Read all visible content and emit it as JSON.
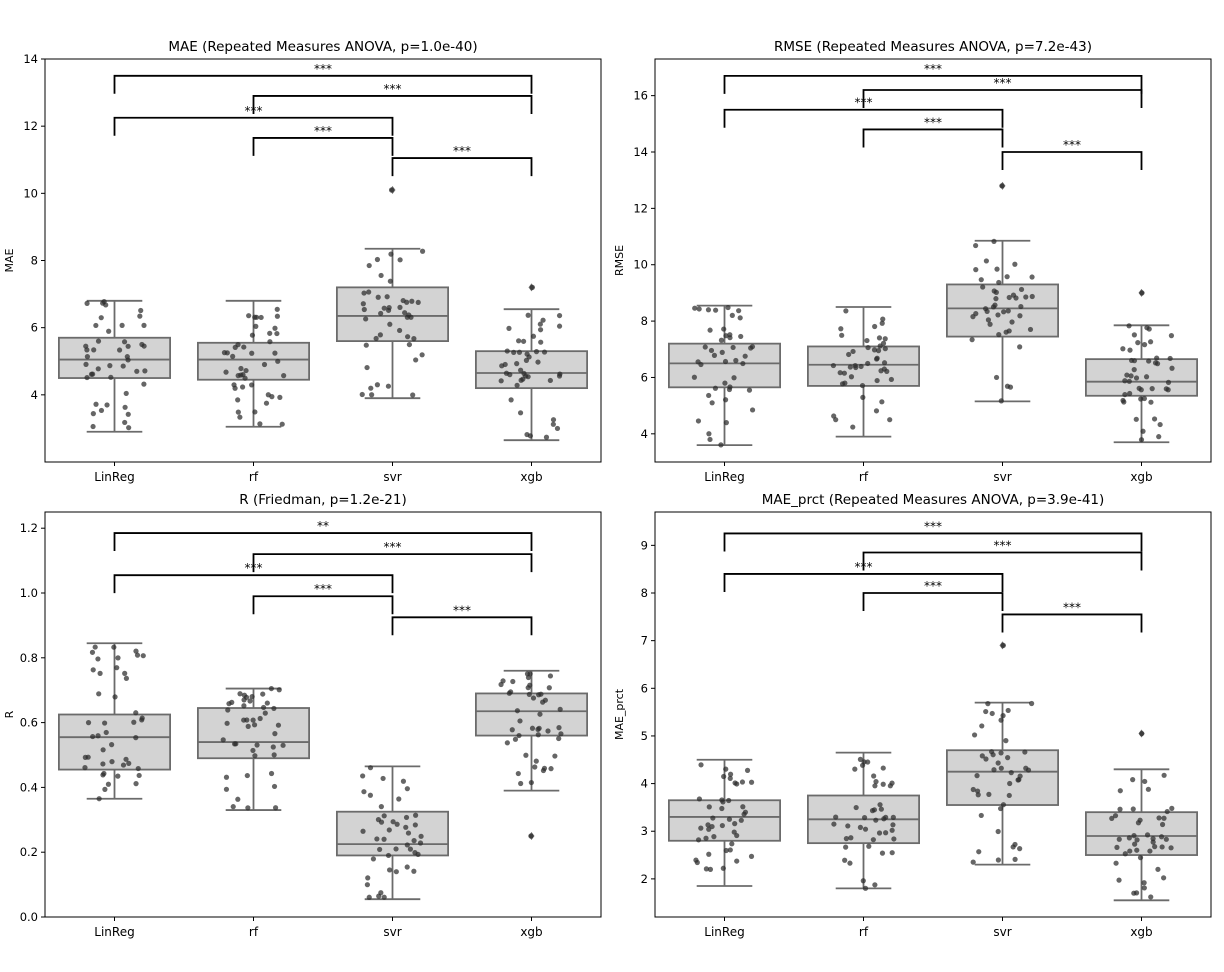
{
  "colors": {
    "box_fill": "#d3d3d3",
    "box_edge": "#6b6b6b",
    "point": "#2b2b2b",
    "bracket": "#000000"
  },
  "chart_data": [
    {
      "type": "box",
      "title": "MAE (Repeated Measures ANOVA, p=1.0e-40)",
      "ylabel": "MAE",
      "categories": [
        "LinReg",
        "rf",
        "svr",
        "xgb"
      ],
      "ylim": [
        2.0,
        14.0
      ],
      "yticks": [
        4,
        6,
        8,
        10,
        12,
        14
      ],
      "ytick_labels": [
        "4",
        "6",
        "8",
        "10",
        "12",
        "14"
      ],
      "boxes": [
        {
          "whislo": 2.9,
          "q1": 4.5,
          "med": 5.05,
          "q3": 5.7,
          "whishi": 6.8,
          "fliers": []
        },
        {
          "whislo": 3.05,
          "q1": 4.45,
          "med": 5.05,
          "q3": 5.55,
          "whishi": 6.8,
          "fliers": []
        },
        {
          "whislo": 3.9,
          "q1": 5.6,
          "med": 6.35,
          "q3": 7.2,
          "whishi": 8.35,
          "fliers": [
            10.1
          ]
        },
        {
          "whislo": 2.65,
          "q1": 4.2,
          "med": 4.65,
          "q3": 5.3,
          "whishi": 6.55,
          "fliers": [
            7.2
          ]
        }
      ],
      "significance": [
        {
          "from": 0,
          "to": 3,
          "y": 13.5,
          "label": "***"
        },
        {
          "from": 1,
          "to": 3,
          "y": 12.9,
          "label": "***"
        },
        {
          "from": 0,
          "to": 2,
          "y": 12.25,
          "label": "***"
        },
        {
          "from": 1,
          "to": 2,
          "y": 11.65,
          "label": "***"
        },
        {
          "from": 2,
          "to": 3,
          "y": 11.05,
          "label": "***"
        }
      ]
    },
    {
      "type": "box",
      "title": "RMSE (Repeated Measures ANOVA, p=7.2e-43)",
      "ylabel": "RMSE",
      "categories": [
        "LinReg",
        "rf",
        "svr",
        "xgb"
      ],
      "ylim": [
        3.0,
        17.3
      ],
      "yticks": [
        4,
        6,
        8,
        10,
        12,
        14,
        16
      ],
      "ytick_labels": [
        "4",
        "6",
        "8",
        "10",
        "12",
        "14",
        "16"
      ],
      "boxes": [
        {
          "whislo": 3.6,
          "q1": 5.65,
          "med": 6.5,
          "q3": 7.2,
          "whishi": 8.55,
          "fliers": []
        },
        {
          "whislo": 3.9,
          "q1": 5.7,
          "med": 6.45,
          "q3": 7.1,
          "whishi": 8.5,
          "fliers": []
        },
        {
          "whislo": 5.15,
          "q1": 7.45,
          "med": 8.45,
          "q3": 9.3,
          "whishi": 10.85,
          "fliers": [
            12.8
          ]
        },
        {
          "whislo": 3.7,
          "q1": 5.35,
          "med": 5.85,
          "q3": 6.65,
          "whishi": 7.85,
          "fliers": [
            9.0
          ]
        }
      ],
      "significance": [
        {
          "from": 0,
          "to": 3,
          "y": 16.7,
          "label": "***"
        },
        {
          "from": 1,
          "to": 3,
          "y": 16.2,
          "label": "***"
        },
        {
          "from": 0,
          "to": 2,
          "y": 15.5,
          "label": "***"
        },
        {
          "from": 1,
          "to": 2,
          "y": 14.8,
          "label": "***"
        },
        {
          "from": 2,
          "to": 3,
          "y": 14.0,
          "label": "***"
        }
      ]
    },
    {
      "type": "box",
      "title": "R (Friedman, p=1.2e-21)",
      "ylabel": "R",
      "categories": [
        "LinReg",
        "rf",
        "svr",
        "xgb"
      ],
      "ylim": [
        0.0,
        1.25
      ],
      "yticks": [
        0.0,
        0.2,
        0.4,
        0.6,
        0.8,
        1.0,
        1.2
      ],
      "ytick_labels": [
        "0.0",
        "0.2",
        "0.4",
        "0.6",
        "0.8",
        "1.0",
        "1.2"
      ],
      "boxes": [
        {
          "whislo": 0.365,
          "q1": 0.455,
          "med": 0.555,
          "q3": 0.625,
          "whishi": 0.845,
          "fliers": []
        },
        {
          "whislo": 0.33,
          "q1": 0.49,
          "med": 0.54,
          "q3": 0.645,
          "whishi": 0.705,
          "fliers": []
        },
        {
          "whislo": 0.055,
          "q1": 0.19,
          "med": 0.225,
          "q3": 0.325,
          "whishi": 0.465,
          "fliers": []
        },
        {
          "whislo": 0.39,
          "q1": 0.56,
          "med": 0.635,
          "q3": 0.69,
          "whishi": 0.76,
          "fliers": [
            0.25
          ]
        }
      ],
      "significance": [
        {
          "from": 0,
          "to": 3,
          "y": 1.185,
          "label": "**"
        },
        {
          "from": 1,
          "to": 3,
          "y": 1.12,
          "label": "***"
        },
        {
          "from": 0,
          "to": 2,
          "y": 1.055,
          "label": "***"
        },
        {
          "from": 1,
          "to": 2,
          "y": 0.99,
          "label": "***"
        },
        {
          "from": 2,
          "to": 3,
          "y": 0.925,
          "label": "***"
        }
      ]
    },
    {
      "type": "box",
      "title": "MAE_prct (Repeated Measures ANOVA, p=3.9e-41)",
      "ylabel": "MAE_prct",
      "categories": [
        "LinReg",
        "rf",
        "svr",
        "xgb"
      ],
      "ylim": [
        1.2,
        9.7
      ],
      "yticks": [
        2,
        3,
        4,
        5,
        6,
        7,
        8,
        9
      ],
      "ytick_labels": [
        "2",
        "3",
        "4",
        "5",
        "6",
        "7",
        "8",
        "9"
      ],
      "boxes": [
        {
          "whislo": 1.85,
          "q1": 2.8,
          "med": 3.3,
          "q3": 3.65,
          "whishi": 4.5,
          "fliers": []
        },
        {
          "whislo": 1.8,
          "q1": 2.75,
          "med": 3.25,
          "q3": 3.75,
          "whishi": 4.65,
          "fliers": []
        },
        {
          "whislo": 2.3,
          "q1": 3.55,
          "med": 4.25,
          "q3": 4.7,
          "whishi": 5.7,
          "fliers": [
            6.9
          ]
        },
        {
          "whislo": 1.55,
          "q1": 2.5,
          "med": 2.9,
          "q3": 3.4,
          "whishi": 4.3,
          "fliers": [
            5.05
          ]
        }
      ],
      "significance": [
        {
          "from": 0,
          "to": 3,
          "y": 9.25,
          "label": "***"
        },
        {
          "from": 1,
          "to": 3,
          "y": 8.85,
          "label": "***"
        },
        {
          "from": 0,
          "to": 2,
          "y": 8.4,
          "label": "***"
        },
        {
          "from": 1,
          "to": 2,
          "y": 8.0,
          "label": "***"
        },
        {
          "from": 2,
          "to": 3,
          "y": 7.55,
          "label": "***"
        }
      ]
    }
  ]
}
